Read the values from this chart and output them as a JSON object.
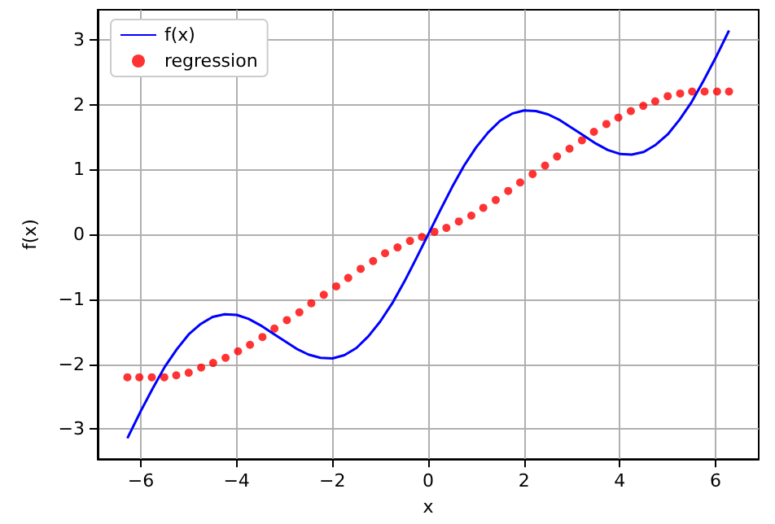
{
  "chart_data": {
    "type": "line",
    "xlabel": "x",
    "ylabel": "f(x)",
    "xlim": [
      -6.9,
      6.9
    ],
    "ylim": [
      -3.46,
      3.46
    ],
    "xticks": [
      -6,
      -4,
      -2,
      0,
      2,
      4,
      6
    ],
    "yticks": [
      -3,
      -2,
      -1,
      0,
      1,
      2,
      3
    ],
    "grid": true,
    "legend": "top left",
    "series": [
      {
        "name": "f(x)",
        "type": "line",
        "color": "#0000ff",
        "marker": "none",
        "line_style": "solid",
        "x": [
          -6.28,
          -6,
          -5.75,
          -5.5,
          -5.25,
          -5,
          -4.75,
          -4.5,
          -4.25,
          -4,
          -3.75,
          -3.5,
          -3.25,
          -3,
          -2.75,
          -2.5,
          -2.25,
          -2,
          -1.75,
          -1.5,
          -1.25,
          -1,
          -0.75,
          -0.5,
          -0.25,
          0,
          0.25,
          0.5,
          0.75,
          1,
          1.25,
          1.5,
          1.75,
          2,
          2.25,
          2.5,
          2.75,
          3,
          3.25,
          3.5,
          3.75,
          4,
          4.25,
          4.5,
          4.75,
          5,
          5.25,
          5.5,
          5.75,
          6,
          6.28
        ],
        "values": [
          -3.14,
          -2.72,
          -2.37,
          -2.04,
          -1.77,
          -1.54,
          -1.38,
          -1.27,
          -1.23,
          -1.24,
          -1.3,
          -1.4,
          -1.52,
          -1.64,
          -1.76,
          -1.85,
          -1.9,
          -1.91,
          -1.86,
          -1.75,
          -1.57,
          -1.34,
          -1.06,
          -0.73,
          -0.37,
          0,
          0.37,
          0.73,
          1.06,
          1.34,
          1.57,
          1.75,
          1.86,
          1.91,
          1.9,
          1.85,
          1.76,
          1.64,
          1.52,
          1.4,
          1.3,
          1.24,
          1.23,
          1.27,
          1.38,
          1.54,
          1.77,
          2.04,
          2.37,
          2.72,
          3.14
        ]
      },
      {
        "name": "regression",
        "type": "scatter",
        "color": "#ff0000",
        "marker": "circle",
        "x": [
          -6.28,
          -6.03,
          -5.77,
          -5.51,
          -5.26,
          -5,
          -4.74,
          -4.49,
          -4.23,
          -3.97,
          -3.72,
          -3.46,
          -3.21,
          -2.95,
          -2.69,
          -2.44,
          -2.18,
          -1.92,
          -1.67,
          -1.41,
          -1.15,
          -0.9,
          -0.64,
          -0.38,
          -0.13,
          0.13,
          0.38,
          0.64,
          0.9,
          1.15,
          1.41,
          1.67,
          1.92,
          2.18,
          2.44,
          2.69,
          2.95,
          3.21,
          3.46,
          3.72,
          3.97,
          4.23,
          4.49,
          4.74,
          5,
          5.26,
          5.51,
          5.77,
          6.03,
          6.28
        ],
        "values": [
          -2.2,
          -2.2,
          -2.2,
          -2.2,
          -2.17,
          -2.13,
          -2.05,
          -1.98,
          -1.9,
          -1.8,
          -1.7,
          -1.58,
          -1.45,
          -1.32,
          -1.2,
          -1.06,
          -0.93,
          -0.8,
          -0.67,
          -0.53,
          -0.41,
          -0.29,
          -0.2,
          -0.1,
          -0.04,
          0.04,
          0.1,
          0.2,
          0.29,
          0.41,
          0.53,
          0.67,
          0.8,
          0.93,
          1.06,
          1.2,
          1.32,
          1.45,
          1.58,
          1.7,
          1.8,
          1.9,
          1.98,
          2.05,
          2.13,
          2.17,
          2.2,
          2.2,
          2.2,
          2.2
        ]
      }
    ]
  }
}
